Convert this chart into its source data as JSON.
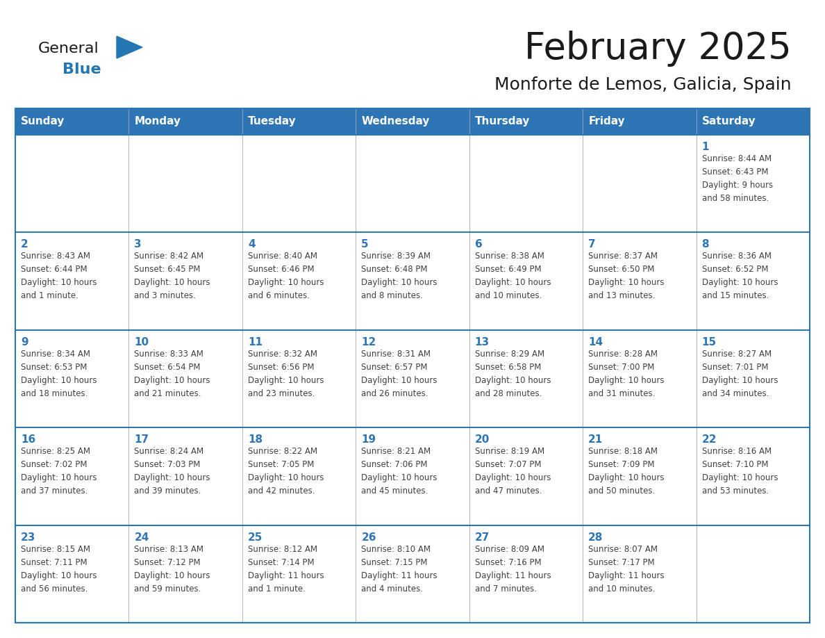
{
  "title": "February 2025",
  "subtitle": "Monforte de Lemos, Galicia, Spain",
  "header_bg": "#2E75B6",
  "header_text_color": "#FFFFFF",
  "cell_bg": "#FFFFFF",
  "border_color": "#2E75B6",
  "day_number_color": "#2E75B6",
  "info_text_color": "#404040",
  "grid_line_color": "#aaaaaa",
  "days_of_week": [
    "Sunday",
    "Monday",
    "Tuesday",
    "Wednesday",
    "Thursday",
    "Friday",
    "Saturday"
  ],
  "logo_general_color": "#1a1a1a",
  "logo_blue_color": "#2477B3",
  "calendar_data": [
    [
      {
        "day": null,
        "info": ""
      },
      {
        "day": null,
        "info": ""
      },
      {
        "day": null,
        "info": ""
      },
      {
        "day": null,
        "info": ""
      },
      {
        "day": null,
        "info": ""
      },
      {
        "day": null,
        "info": ""
      },
      {
        "day": 1,
        "info": "Sunrise: 8:44 AM\nSunset: 6:43 PM\nDaylight: 9 hours\nand 58 minutes."
      }
    ],
    [
      {
        "day": 2,
        "info": "Sunrise: 8:43 AM\nSunset: 6:44 PM\nDaylight: 10 hours\nand 1 minute."
      },
      {
        "day": 3,
        "info": "Sunrise: 8:42 AM\nSunset: 6:45 PM\nDaylight: 10 hours\nand 3 minutes."
      },
      {
        "day": 4,
        "info": "Sunrise: 8:40 AM\nSunset: 6:46 PM\nDaylight: 10 hours\nand 6 minutes."
      },
      {
        "day": 5,
        "info": "Sunrise: 8:39 AM\nSunset: 6:48 PM\nDaylight: 10 hours\nand 8 minutes."
      },
      {
        "day": 6,
        "info": "Sunrise: 8:38 AM\nSunset: 6:49 PM\nDaylight: 10 hours\nand 10 minutes."
      },
      {
        "day": 7,
        "info": "Sunrise: 8:37 AM\nSunset: 6:50 PM\nDaylight: 10 hours\nand 13 minutes."
      },
      {
        "day": 8,
        "info": "Sunrise: 8:36 AM\nSunset: 6:52 PM\nDaylight: 10 hours\nand 15 minutes."
      }
    ],
    [
      {
        "day": 9,
        "info": "Sunrise: 8:34 AM\nSunset: 6:53 PM\nDaylight: 10 hours\nand 18 minutes."
      },
      {
        "day": 10,
        "info": "Sunrise: 8:33 AM\nSunset: 6:54 PM\nDaylight: 10 hours\nand 21 minutes."
      },
      {
        "day": 11,
        "info": "Sunrise: 8:32 AM\nSunset: 6:56 PM\nDaylight: 10 hours\nand 23 minutes."
      },
      {
        "day": 12,
        "info": "Sunrise: 8:31 AM\nSunset: 6:57 PM\nDaylight: 10 hours\nand 26 minutes."
      },
      {
        "day": 13,
        "info": "Sunrise: 8:29 AM\nSunset: 6:58 PM\nDaylight: 10 hours\nand 28 minutes."
      },
      {
        "day": 14,
        "info": "Sunrise: 8:28 AM\nSunset: 7:00 PM\nDaylight: 10 hours\nand 31 minutes."
      },
      {
        "day": 15,
        "info": "Sunrise: 8:27 AM\nSunset: 7:01 PM\nDaylight: 10 hours\nand 34 minutes."
      }
    ],
    [
      {
        "day": 16,
        "info": "Sunrise: 8:25 AM\nSunset: 7:02 PM\nDaylight: 10 hours\nand 37 minutes."
      },
      {
        "day": 17,
        "info": "Sunrise: 8:24 AM\nSunset: 7:03 PM\nDaylight: 10 hours\nand 39 minutes."
      },
      {
        "day": 18,
        "info": "Sunrise: 8:22 AM\nSunset: 7:05 PM\nDaylight: 10 hours\nand 42 minutes."
      },
      {
        "day": 19,
        "info": "Sunrise: 8:21 AM\nSunset: 7:06 PM\nDaylight: 10 hours\nand 45 minutes."
      },
      {
        "day": 20,
        "info": "Sunrise: 8:19 AM\nSunset: 7:07 PM\nDaylight: 10 hours\nand 47 minutes."
      },
      {
        "day": 21,
        "info": "Sunrise: 8:18 AM\nSunset: 7:09 PM\nDaylight: 10 hours\nand 50 minutes."
      },
      {
        "day": 22,
        "info": "Sunrise: 8:16 AM\nSunset: 7:10 PM\nDaylight: 10 hours\nand 53 minutes."
      }
    ],
    [
      {
        "day": 23,
        "info": "Sunrise: 8:15 AM\nSunset: 7:11 PM\nDaylight: 10 hours\nand 56 minutes."
      },
      {
        "day": 24,
        "info": "Sunrise: 8:13 AM\nSunset: 7:12 PM\nDaylight: 10 hours\nand 59 minutes."
      },
      {
        "day": 25,
        "info": "Sunrise: 8:12 AM\nSunset: 7:14 PM\nDaylight: 11 hours\nand 1 minute."
      },
      {
        "day": 26,
        "info": "Sunrise: 8:10 AM\nSunset: 7:15 PM\nDaylight: 11 hours\nand 4 minutes."
      },
      {
        "day": 27,
        "info": "Sunrise: 8:09 AM\nSunset: 7:16 PM\nDaylight: 11 hours\nand 7 minutes."
      },
      {
        "day": 28,
        "info": "Sunrise: 8:07 AM\nSunset: 7:17 PM\nDaylight: 11 hours\nand 10 minutes."
      },
      {
        "day": null,
        "info": ""
      }
    ]
  ]
}
